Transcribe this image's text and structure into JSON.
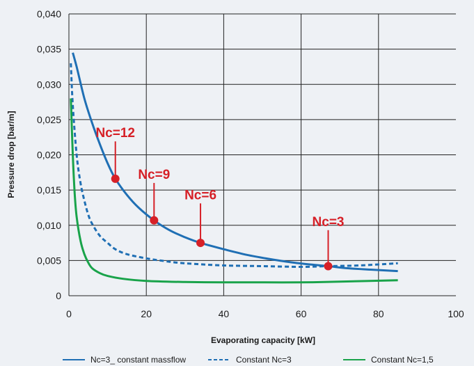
{
  "chart_data": {
    "type": "line",
    "xlabel": "Evaporating capacity [kW]",
    "ylabel": "Pressure drop [bar/m]",
    "xlim": [
      0,
      100
    ],
    "ylim": [
      0,
      0.04
    ],
    "x_ticks": [
      "0",
      "20",
      "40",
      "60",
      "80",
      "100"
    ],
    "y_ticks": [
      "0",
      "0,005",
      "0,010",
      "0,015",
      "0,020",
      "0,025",
      "0,030",
      "0,035",
      "0,040"
    ],
    "grid": true,
    "legend_position": "bottom",
    "colors": {
      "blue": "#1f6fb4",
      "green": "#19a34a",
      "red": "#d62027",
      "grid": "#222222"
    },
    "series": [
      {
        "name": "Nc=3_ constant massflow",
        "style": "solid",
        "color": "#1f6fb4",
        "points": [
          [
            1,
            0.0345
          ],
          [
            2,
            0.0325
          ],
          [
            4,
            0.028
          ],
          [
            6,
            0.0245
          ],
          [
            8,
            0.0215
          ],
          [
            10,
            0.0188
          ],
          [
            12,
            0.0166
          ],
          [
            15,
            0.0143
          ],
          [
            18,
            0.0125
          ],
          [
            22,
            0.0107
          ],
          [
            26,
            0.0093
          ],
          [
            30,
            0.0083
          ],
          [
            34,
            0.0075
          ],
          [
            40,
            0.0066
          ],
          [
            46,
            0.0058
          ],
          [
            52,
            0.0052
          ],
          [
            58,
            0.0047
          ],
          [
            63,
            0.0044
          ],
          [
            67,
            0.0042
          ],
          [
            72,
            0.0039
          ],
          [
            78,
            0.0037
          ],
          [
            85,
            0.0035
          ]
        ]
      },
      {
        "name": "Constant Nc=3",
        "style": "dashed",
        "color": "#1f6fb4",
        "points": [
          [
            0.5,
            0.033
          ],
          [
            1,
            0.027
          ],
          [
            2,
            0.02
          ],
          [
            3,
            0.016
          ],
          [
            4,
            0.0135
          ],
          [
            5,
            0.0115
          ],
          [
            6,
            0.0102
          ],
          [
            8,
            0.0085
          ],
          [
            10,
            0.0075
          ],
          [
            12,
            0.0066
          ],
          [
            15,
            0.0059
          ],
          [
            20,
            0.0053
          ],
          [
            25,
            0.0049
          ],
          [
            30,
            0.0046
          ],
          [
            40,
            0.0043
          ],
          [
            50,
            0.0042
          ],
          [
            60,
            0.0041
          ],
          [
            67,
            0.0042
          ],
          [
            75,
            0.0043
          ],
          [
            85,
            0.0046
          ]
        ]
      },
      {
        "name": "Constant Nc=1,5",
        "style": "solid",
        "color": "#19a34a",
        "points": [
          [
            0.5,
            0.028
          ],
          [
            1,
            0.02
          ],
          [
            1.5,
            0.0145
          ],
          [
            2,
            0.0112
          ],
          [
            3,
            0.0078
          ],
          [
            4,
            0.0059
          ],
          [
            5,
            0.0047
          ],
          [
            6,
            0.0039
          ],
          [
            8,
            0.0032
          ],
          [
            10,
            0.0028
          ],
          [
            14,
            0.0024
          ],
          [
            20,
            0.0021
          ],
          [
            30,
            0.00195
          ],
          [
            40,
            0.0019
          ],
          [
            50,
            0.0019
          ],
          [
            60,
            0.0019
          ],
          [
            70,
            0.002
          ],
          [
            85,
            0.0022
          ]
        ]
      }
    ],
    "annotations": [
      {
        "label": "Nc=12",
        "x": 12,
        "y": 0.0166,
        "label_x": 12,
        "label_y": 0.0225
      },
      {
        "label": "Nc=9",
        "x": 22,
        "y": 0.0107,
        "label_x": 22,
        "label_y": 0.0166
      },
      {
        "label": "Nc=6",
        "x": 34,
        "y": 0.0075,
        "label_x": 34,
        "label_y": 0.0137
      },
      {
        "label": "Nc=3",
        "x": 67,
        "y": 0.0042,
        "label_x": 67,
        "label_y": 0.0099
      }
    ]
  }
}
